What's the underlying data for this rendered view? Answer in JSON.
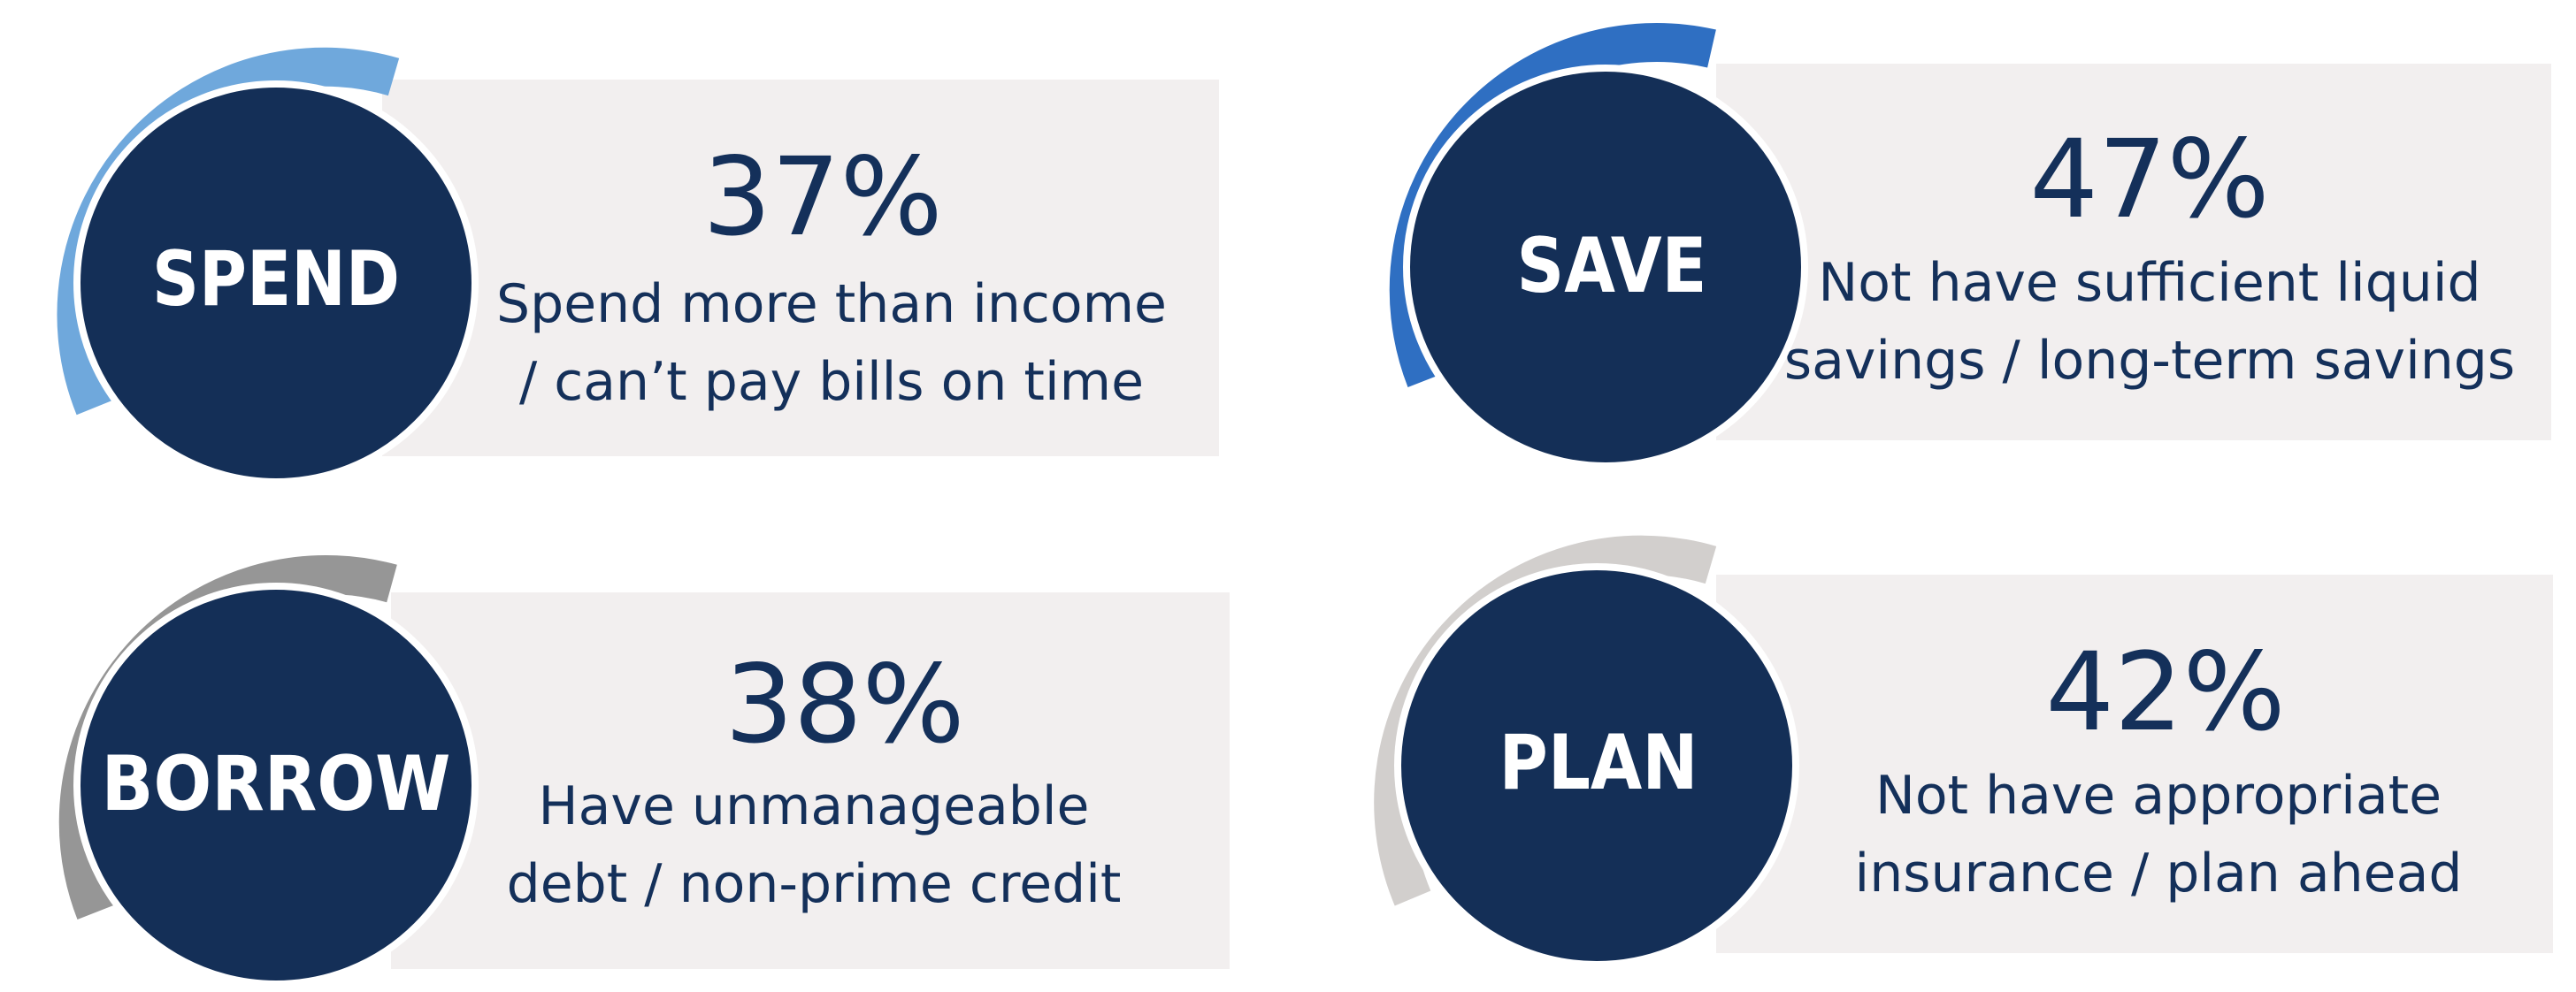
{
  "colors": {
    "circle": "#142f57",
    "card_background": "#f2efef",
    "text": "#14305a",
    "spend_arc": "#6fa8dc",
    "save_arc": "#2f6fc2",
    "borrow_arc": "#969696",
    "plan_arc": "#d2cfcd"
  },
  "tiles": [
    {
      "key": "spend",
      "category": "SPEND",
      "percent": "37%",
      "description": [
        "Spend more than income",
        "/ can’t pay bills on time"
      ]
    },
    {
      "key": "save",
      "category": "SAVE",
      "percent": "47%",
      "description": [
        "Not have sufficient liquid",
        "savings / long-term savings"
      ]
    },
    {
      "key": "borrow",
      "category": "BORROW",
      "percent": "38%",
      "description": [
        "Have unmanageable",
        "debt / non-prime credit"
      ]
    },
    {
      "key": "plan",
      "category": "PLAN",
      "percent": "42%",
      "description": [
        "Not have appropriate",
        "insurance / plan ahead"
      ]
    }
  ]
}
